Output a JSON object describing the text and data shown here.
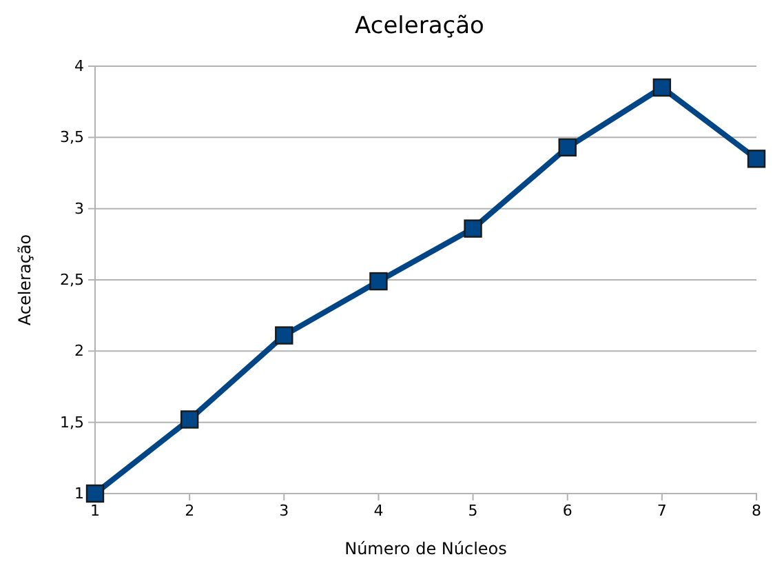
{
  "chart_data": {
    "type": "line",
    "title": "Aceleração",
    "xlabel": "Número de Núcleos",
    "ylabel": "Aceleração",
    "categories": [
      "1",
      "2",
      "3",
      "4",
      "5",
      "6",
      "7",
      "8"
    ],
    "series": [
      {
        "color": "#004586",
        "values": [
          1.0,
          1.52,
          2.11,
          2.49,
          2.86,
          3.43,
          3.85,
          3.35
        ]
      }
    ],
    "ylim": [
      1,
      4
    ],
    "yticks": [
      1,
      {
        "value": 1.5,
        "label": "1,5"
      },
      2,
      {
        "value": 2.5,
        "label": "2,5"
      },
      3,
      {
        "value": 3.5,
        "label": "3,5"
      },
      4
    ],
    "grid": "y",
    "marker": "square",
    "line_style": "solid"
  }
}
